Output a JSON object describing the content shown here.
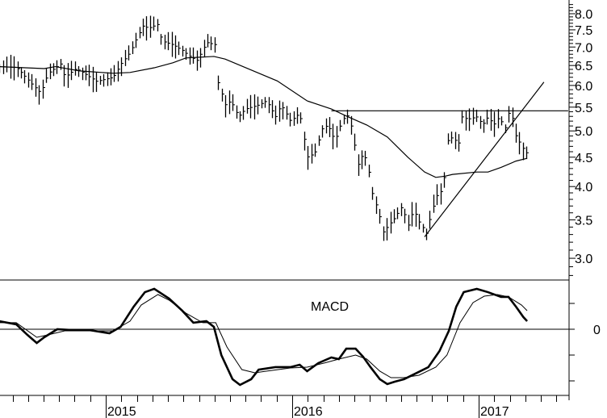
{
  "chart_data": [
    {
      "type": "bar",
      "subtype": "ohlc-weekly",
      "title": "",
      "yscale": "log",
      "ylim": [
        2.6,
        8.4
      ],
      "y_ticks": [
        "8.0",
        "7.5",
        "7.0",
        "6.5",
        "6.0",
        "5.5",
        "5.0",
        "4.5",
        "4.0",
        "3.5",
        "3.0"
      ],
      "x_ticks": [
        "2015",
        "2016",
        "2017"
      ],
      "xlim": [
        2014.43,
        2017.48
      ],
      "price_path": [
        [
          2014.43,
          6.47
        ],
        [
          2014.52,
          6.45
        ],
        [
          2014.61,
          6.0
        ],
        [
          2014.65,
          5.82
        ],
        [
          2014.69,
          6.3
        ],
        [
          2014.76,
          6.55
        ],
        [
          2014.78,
          6.2
        ],
        [
          2014.84,
          6.42
        ],
        [
          2014.95,
          6.1
        ],
        [
          2015.04,
          6.2
        ],
        [
          2015.08,
          6.53
        ],
        [
          2015.13,
          6.85
        ],
        [
          2015.17,
          7.31
        ],
        [
          2015.2,
          7.62
        ],
        [
          2015.23,
          7.55
        ],
        [
          2015.28,
          7.67
        ],
        [
          2015.3,
          7.17
        ],
        [
          2015.36,
          7.06
        ],
        [
          2015.41,
          6.91
        ],
        [
          2015.45,
          6.74
        ],
        [
          2015.49,
          6.63
        ],
        [
          2015.54,
          7.13
        ],
        [
          2015.59,
          7.06
        ],
        [
          2015.6,
          6.11
        ],
        [
          2015.64,
          5.55
        ],
        [
          2015.67,
          5.64
        ],
        [
          2015.71,
          5.29
        ],
        [
          2015.75,
          5.46
        ],
        [
          2015.82,
          5.55
        ],
        [
          2015.86,
          5.64
        ],
        [
          2015.91,
          5.29
        ],
        [
          2015.94,
          5.55
        ],
        [
          2015.99,
          5.2
        ],
        [
          2016.04,
          5.37
        ],
        [
          2016.08,
          4.5
        ],
        [
          2016.12,
          4.57
        ],
        [
          2016.16,
          5.04
        ],
        [
          2016.19,
          5.12
        ],
        [
          2016.23,
          4.8
        ],
        [
          2016.25,
          5.04
        ],
        [
          2016.29,
          5.37
        ],
        [
          2016.32,
          5.04
        ],
        [
          2016.35,
          4.35
        ],
        [
          2016.38,
          4.57
        ],
        [
          2016.4,
          4.43
        ],
        [
          2016.43,
          3.89
        ],
        [
          2016.47,
          3.53
        ],
        [
          2016.49,
          3.31
        ],
        [
          2016.51,
          3.41
        ],
        [
          2016.55,
          3.53
        ],
        [
          2016.59,
          3.7
        ],
        [
          2016.62,
          3.41
        ],
        [
          2016.65,
          3.64
        ],
        [
          2016.68,
          3.47
        ],
        [
          2016.72,
          3.31
        ],
        [
          2016.75,
          3.64
        ],
        [
          2016.78,
          3.89
        ],
        [
          2016.81,
          3.95
        ],
        [
          2016.83,
          4.8
        ],
        [
          2016.86,
          4.88
        ],
        [
          2016.89,
          4.72
        ],
        [
          2016.91,
          5.29
        ],
        [
          2016.94,
          5.24
        ],
        [
          2016.99,
          5.29
        ],
        [
          2017.02,
          5.12
        ],
        [
          2017.05,
          5.29
        ],
        [
          2017.08,
          5.12
        ],
        [
          2017.11,
          5.29
        ],
        [
          2017.14,
          5.04
        ],
        [
          2017.16,
          5.37
        ],
        [
          2017.19,
          5.2
        ],
        [
          2017.2,
          4.88
        ],
        [
          2017.23,
          4.72
        ],
        [
          2017.25,
          4.57
        ],
        [
          2017.27,
          4.6
        ]
      ],
      "moving_average": [
        [
          2014.43,
          6.47
        ],
        [
          2014.67,
          6.42
        ],
        [
          2014.73,
          6.47
        ],
        [
          2014.86,
          6.36
        ],
        [
          2015.04,
          6.3
        ],
        [
          2015.13,
          6.32
        ],
        [
          2015.26,
          6.44
        ],
        [
          2015.36,
          6.57
        ],
        [
          2015.43,
          6.7
        ],
        [
          2015.58,
          6.74
        ],
        [
          2015.64,
          6.67
        ],
        [
          2015.92,
          6.11
        ],
        [
          2016.08,
          5.64
        ],
        [
          2016.21,
          5.46
        ],
        [
          2016.3,
          5.29
        ],
        [
          2016.4,
          5.12
        ],
        [
          2016.51,
          4.88
        ],
        [
          2016.62,
          4.5
        ],
        [
          2016.71,
          4.24
        ],
        [
          2016.77,
          4.15
        ],
        [
          2016.82,
          4.17
        ],
        [
          2016.86,
          4.2
        ],
        [
          2016.99,
          4.24
        ],
        [
          2017.05,
          4.24
        ],
        [
          2017.12,
          4.32
        ],
        [
          2017.2,
          4.43
        ],
        [
          2017.26,
          4.48
        ]
      ],
      "lines": [
        {
          "name": "resistance",
          "from": [
            2016.21,
            5.42
          ],
          "to": [
            2017.48,
            5.42
          ]
        },
        {
          "name": "trendline",
          "from": [
            2016.71,
            3.27
          ],
          "to": [
            2017.35,
            6.08
          ]
        }
      ]
    },
    {
      "type": "line",
      "title": "MACD",
      "y_ticks": [
        "0"
      ],
      "ylim": [
        -0.64,
        0.48
      ],
      "series": [
        {
          "name": "MACD",
          "values": [
            [
              2014.43,
              0.078
            ],
            [
              2014.52,
              0.047
            ],
            [
              2014.58,
              -0.055
            ],
            [
              2014.63,
              -0.133
            ],
            [
              2014.67,
              -0.078
            ],
            [
              2014.74,
              0
            ],
            [
              2014.82,
              -0.008
            ],
            [
              2014.91,
              -0.008
            ],
            [
              2015.02,
              -0.039
            ],
            [
              2015.08,
              0.023
            ],
            [
              2015.15,
              0.219
            ],
            [
              2015.21,
              0.359
            ],
            [
              2015.26,
              0.391
            ],
            [
              2015.34,
              0.297
            ],
            [
              2015.41,
              0.18
            ],
            [
              2015.47,
              0.063
            ],
            [
              2015.54,
              0.078
            ],
            [
              2015.58,
              0.023
            ],
            [
              2015.62,
              -0.25
            ],
            [
              2015.68,
              -0.484
            ],
            [
              2015.72,
              -0.539
            ],
            [
              2015.78,
              -0.484
            ],
            [
              2015.82,
              -0.391
            ],
            [
              2015.91,
              -0.367
            ],
            [
              2015.99,
              -0.367
            ],
            [
              2016.04,
              -0.344
            ],
            [
              2016.08,
              -0.406
            ],
            [
              2016.14,
              -0.328
            ],
            [
              2016.21,
              -0.273
            ],
            [
              2016.25,
              -0.289
            ],
            [
              2016.29,
              -0.188
            ],
            [
              2016.34,
              -0.188
            ],
            [
              2016.38,
              -0.266
            ],
            [
              2016.42,
              -0.367
            ],
            [
              2016.47,
              -0.484
            ],
            [
              2016.51,
              -0.531
            ],
            [
              2016.55,
              -0.508
            ],
            [
              2016.6,
              -0.484
            ],
            [
              2016.66,
              -0.43
            ],
            [
              2016.73,
              -0.367
            ],
            [
              2016.79,
              -0.211
            ],
            [
              2016.84,
              -0.016
            ],
            [
              2016.88,
              0.219
            ],
            [
              2016.92,
              0.359
            ],
            [
              2016.99,
              0.391
            ],
            [
              2017.05,
              0.359
            ],
            [
              2017.12,
              0.313
            ],
            [
              2017.16,
              0.313
            ],
            [
              2017.2,
              0.219
            ],
            [
              2017.24,
              0.117
            ],
            [
              2017.26,
              0.078
            ]
          ]
        },
        {
          "name": "Signal",
          "values": [
            [
              2014.43,
              0.063
            ],
            [
              2014.52,
              0.063
            ],
            [
              2014.63,
              -0.078
            ],
            [
              2014.69,
              -0.055
            ],
            [
              2014.78,
              -0.016
            ],
            [
              2014.91,
              -0.016
            ],
            [
              2015.04,
              -0.016
            ],
            [
              2015.13,
              0.078
            ],
            [
              2015.19,
              0.234
            ],
            [
              2015.28,
              0.336
            ],
            [
              2015.34,
              0.281
            ],
            [
              2015.43,
              0.156
            ],
            [
              2015.52,
              0.063
            ],
            [
              2015.59,
              0.063
            ],
            [
              2015.65,
              -0.172
            ],
            [
              2015.73,
              -0.391
            ],
            [
              2015.8,
              -0.422
            ],
            [
              2015.86,
              -0.406
            ],
            [
              2015.99,
              -0.375
            ],
            [
              2016.08,
              -0.367
            ],
            [
              2016.17,
              -0.328
            ],
            [
              2016.25,
              -0.289
            ],
            [
              2016.34,
              -0.25
            ],
            [
              2016.4,
              -0.289
            ],
            [
              2016.47,
              -0.406
            ],
            [
              2016.53,
              -0.469
            ],
            [
              2016.6,
              -0.469
            ],
            [
              2016.68,
              -0.445
            ],
            [
              2016.77,
              -0.367
            ],
            [
              2016.83,
              -0.25
            ],
            [
              2016.9,
              0.063
            ],
            [
              2016.97,
              0.258
            ],
            [
              2017.03,
              0.32
            ],
            [
              2017.1,
              0.336
            ],
            [
              2017.16,
              0.313
            ],
            [
              2017.23,
              0.234
            ],
            [
              2017.26,
              0.18
            ]
          ]
        }
      ]
    }
  ]
}
